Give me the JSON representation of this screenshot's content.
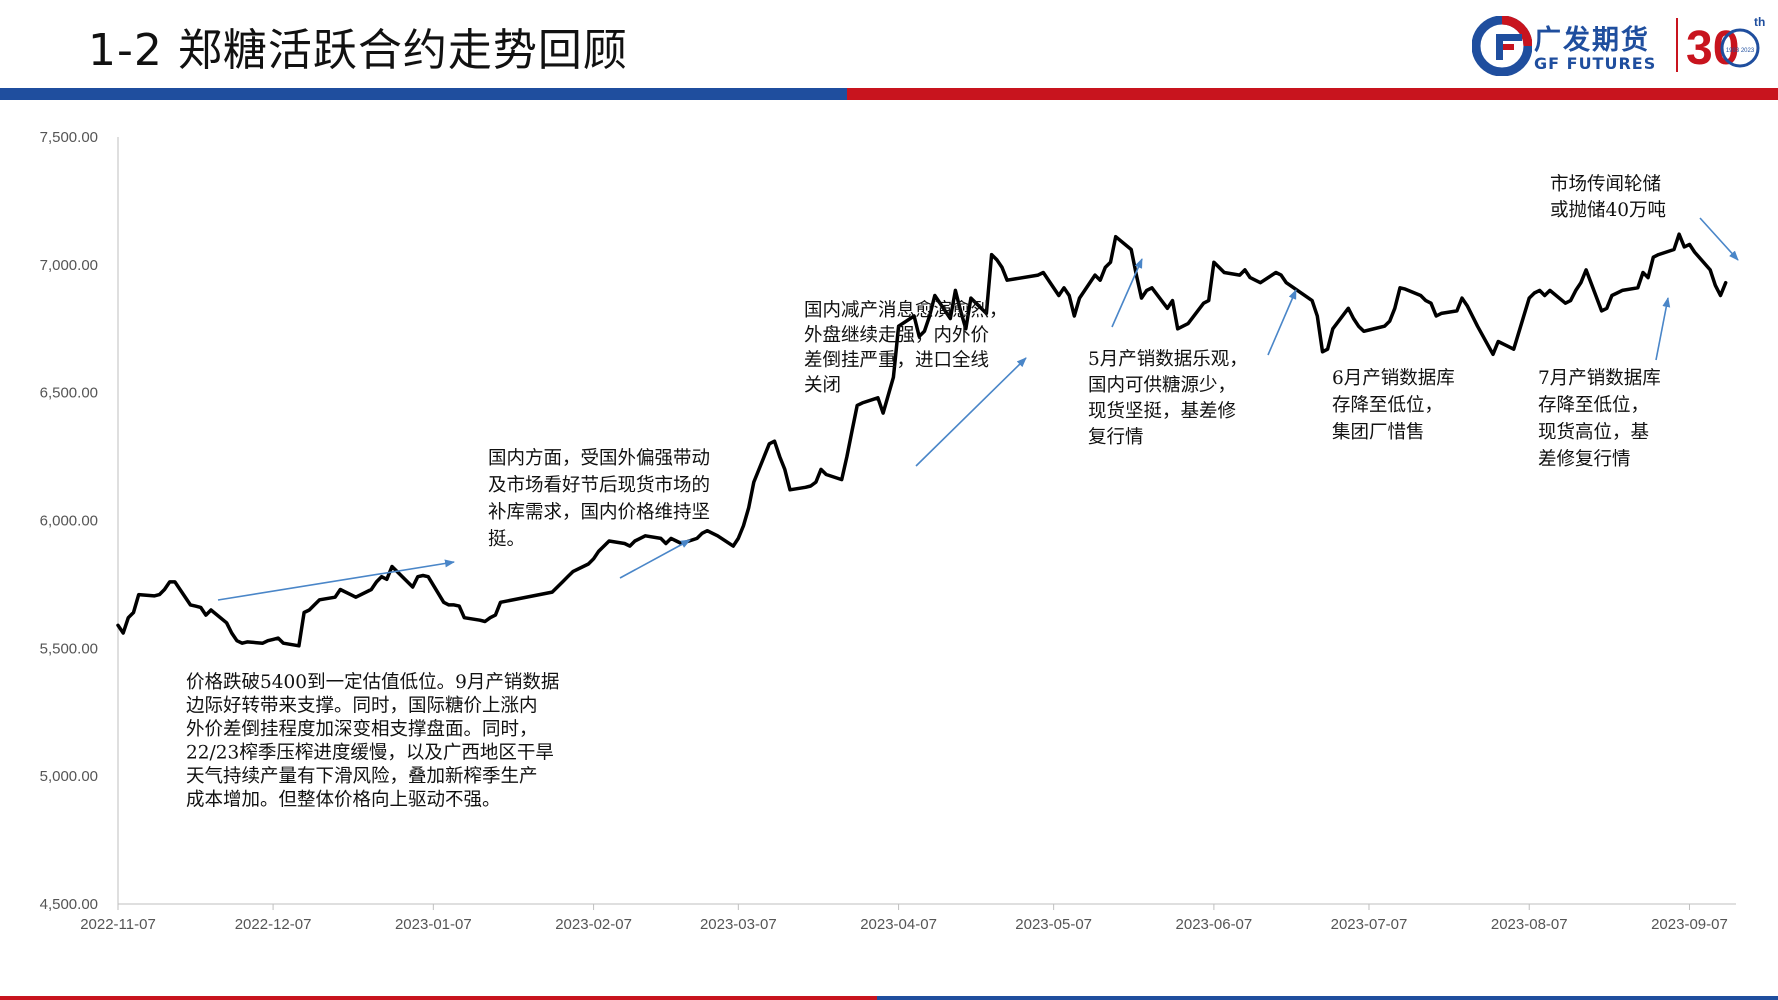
{
  "header": {
    "title": "1-2 郑糖活跃合约走势回顾"
  },
  "logo": {
    "name_cn": "广发期货",
    "name_en": "GF FUTURES",
    "anniversary": "30",
    "anniversary_suffix": "th",
    "years": "1993 2023"
  },
  "colors": {
    "brand_blue": "#1f4e9e",
    "brand_red": "#c8141e",
    "series": "#000000",
    "arrow": "#4a86c8"
  },
  "chart_data": {
    "type": "line",
    "title": "",
    "xlabel": "",
    "ylabel": "",
    "ylim": [
      4500,
      7500
    ],
    "y_ticks": [
      "7,500.00",
      "7,000.00",
      "6,500.00",
      "6,000.00",
      "5,500.00",
      "5,000.00",
      "4,500.00"
    ],
    "x_ticks": [
      "2022-11-07",
      "2022-12-07",
      "2023-01-07",
      "2023-02-07",
      "2023-03-07",
      "2023-04-07",
      "2023-05-07",
      "2023-06-07",
      "2023-07-07",
      "2023-08-07",
      "2023-09-07"
    ],
    "x_range": [
      "2022-11-07",
      "2023-09-16"
    ],
    "grid": false,
    "legend": "none",
    "series": [
      {
        "values": [
          [
            "2022-11-07",
            5590
          ],
          [
            "2022-11-08",
            5560
          ],
          [
            "2022-11-09",
            5620
          ],
          [
            "2022-11-10",
            5640
          ],
          [
            "2022-11-11",
            5710
          ],
          [
            "2022-11-14",
            5705
          ],
          [
            "2022-11-15",
            5710
          ],
          [
            "2022-11-16",
            5730
          ],
          [
            "2022-11-17",
            5760
          ],
          [
            "2022-11-18",
            5760
          ],
          [
            "2022-11-21",
            5670
          ],
          [
            "2022-11-22",
            5665
          ],
          [
            "2022-11-23",
            5660
          ],
          [
            "2022-11-24",
            5630
          ],
          [
            "2022-11-25",
            5650
          ],
          [
            "2022-11-28",
            5600
          ],
          [
            "2022-11-29",
            5560
          ],
          [
            "2022-11-30",
            5530
          ],
          [
            "2022-12-01",
            5520
          ],
          [
            "2022-12-02",
            5525
          ],
          [
            "2022-12-05",
            5520
          ],
          [
            "2022-12-06",
            5530
          ],
          [
            "2022-12-07",
            5535
          ],
          [
            "2022-12-08",
            5540
          ],
          [
            "2022-12-09",
            5520
          ],
          [
            "2022-12-12",
            5510
          ],
          [
            "2022-12-13",
            5640
          ],
          [
            "2022-12-14",
            5650
          ],
          [
            "2022-12-15",
            5670
          ],
          [
            "2022-12-16",
            5690
          ],
          [
            "2022-12-19",
            5700
          ],
          [
            "2022-12-20",
            5730
          ],
          [
            "2022-12-21",
            5720
          ],
          [
            "2022-12-22",
            5710
          ],
          [
            "2022-12-23",
            5700
          ],
          [
            "2022-12-26",
            5730
          ],
          [
            "2022-12-27",
            5760
          ],
          [
            "2022-12-28",
            5780
          ],
          [
            "2022-12-29",
            5770
          ],
          [
            "2022-12-30",
            5820
          ],
          [
            "2023-01-03",
            5740
          ],
          [
            "2023-01-04",
            5780
          ],
          [
            "2023-01-05",
            5785
          ],
          [
            "2023-01-06",
            5780
          ],
          [
            "2023-01-09",
            5680
          ],
          [
            "2023-01-10",
            5670
          ],
          [
            "2023-01-11",
            5670
          ],
          [
            "2023-01-12",
            5665
          ],
          [
            "2023-01-13",
            5620
          ],
          [
            "2023-01-16",
            5610
          ],
          [
            "2023-01-17",
            5605
          ],
          [
            "2023-01-18",
            5620
          ],
          [
            "2023-01-19",
            5630
          ],
          [
            "2023-01-20",
            5680
          ],
          [
            "2023-01-30",
            5720
          ],
          [
            "2023-01-31",
            5740
          ],
          [
            "2023-02-01",
            5760
          ],
          [
            "2023-02-02",
            5780
          ],
          [
            "2023-02-03",
            5800
          ],
          [
            "2023-02-06",
            5830
          ],
          [
            "2023-02-07",
            5850
          ],
          [
            "2023-02-08",
            5880
          ],
          [
            "2023-02-09",
            5900
          ],
          [
            "2023-02-10",
            5920
          ],
          [
            "2023-02-13",
            5910
          ],
          [
            "2023-02-14",
            5900
          ],
          [
            "2023-02-15",
            5920
          ],
          [
            "2023-02-16",
            5930
          ],
          [
            "2023-02-17",
            5940
          ],
          [
            "2023-02-20",
            5930
          ],
          [
            "2023-02-21",
            5910
          ],
          [
            "2023-02-22",
            5930
          ],
          [
            "2023-02-23",
            5920
          ],
          [
            "2023-02-24",
            5910
          ],
          [
            "2023-02-27",
            5930
          ],
          [
            "2023-02-28",
            5950
          ],
          [
            "2023-03-01",
            5960
          ],
          [
            "2023-03-02",
            5950
          ],
          [
            "2023-03-03",
            5940
          ],
          [
            "2023-03-06",
            5900
          ],
          [
            "2023-03-07",
            5930
          ],
          [
            "2023-03-08",
            5980
          ],
          [
            "2023-03-09",
            6050
          ],
          [
            "2023-03-10",
            6150
          ],
          [
            "2023-03-13",
            6300
          ],
          [
            "2023-03-14",
            6310
          ],
          [
            "2023-03-15",
            6250
          ],
          [
            "2023-03-16",
            6200
          ],
          [
            "2023-03-17",
            6120
          ],
          [
            "2023-03-20",
            6130
          ],
          [
            "2023-03-21",
            6135
          ],
          [
            "2023-03-22",
            6150
          ],
          [
            "2023-03-23",
            6200
          ],
          [
            "2023-03-24",
            6180
          ],
          [
            "2023-03-27",
            6160
          ],
          [
            "2023-03-28",
            6250
          ],
          [
            "2023-03-29",
            6350
          ],
          [
            "2023-03-30",
            6450
          ],
          [
            "2023-03-31",
            6460
          ],
          [
            "2023-04-03",
            6480
          ],
          [
            "2023-04-04",
            6420
          ],
          [
            "2023-04-06",
            6560
          ],
          [
            "2023-04-07",
            6760
          ],
          [
            "2023-04-10",
            6800
          ],
          [
            "2023-04-11",
            6720
          ],
          [
            "2023-04-12",
            6740
          ],
          [
            "2023-04-13",
            6800
          ],
          [
            "2023-04-14",
            6880
          ],
          [
            "2023-04-17",
            6790
          ],
          [
            "2023-04-18",
            6900
          ],
          [
            "2023-04-19",
            6820
          ],
          [
            "2023-04-20",
            6750
          ],
          [
            "2023-04-21",
            6870
          ],
          [
            "2023-04-24",
            6810
          ],
          [
            "2023-04-25",
            7040
          ],
          [
            "2023-04-26",
            7020
          ],
          [
            "2023-04-27",
            6990
          ],
          [
            "2023-04-28",
            6940
          ],
          [
            "2023-05-04",
            6960
          ],
          [
            "2023-05-05",
            6970
          ],
          [
            "2023-05-08",
            6880
          ],
          [
            "2023-05-09",
            6910
          ],
          [
            "2023-05-10",
            6880
          ],
          [
            "2023-05-11",
            6800
          ],
          [
            "2023-05-12",
            6870
          ],
          [
            "2023-05-15",
            6960
          ],
          [
            "2023-05-16",
            6940
          ],
          [
            "2023-05-17",
            6990
          ],
          [
            "2023-05-18",
            7010
          ],
          [
            "2023-05-19",
            7110
          ],
          [
            "2023-05-22",
            7060
          ],
          [
            "2023-05-23",
            6960
          ],
          [
            "2023-05-24",
            6870
          ],
          [
            "2023-05-25",
            6900
          ],
          [
            "2023-05-26",
            6910
          ],
          [
            "2023-05-29",
            6830
          ],
          [
            "2023-05-30",
            6860
          ],
          [
            "2023-05-31",
            6750
          ],
          [
            "2023-06-01",
            6760
          ],
          [
            "2023-06-02",
            6770
          ],
          [
            "2023-06-05",
            6850
          ],
          [
            "2023-06-06",
            6860
          ],
          [
            "2023-06-07",
            7010
          ],
          [
            "2023-06-08",
            6990
          ],
          [
            "2023-06-09",
            6970
          ],
          [
            "2023-06-12",
            6960
          ],
          [
            "2023-06-13",
            6980
          ],
          [
            "2023-06-14",
            6950
          ],
          [
            "2023-06-15",
            6940
          ],
          [
            "2023-06-16",
            6930
          ],
          [
            "2023-06-19",
            6970
          ],
          [
            "2023-06-20",
            6960
          ],
          [
            "2023-06-21",
            6930
          ],
          [
            "2023-06-26",
            6860
          ],
          [
            "2023-06-27",
            6800
          ],
          [
            "2023-06-28",
            6660
          ],
          [
            "2023-06-29",
            6670
          ],
          [
            "2023-06-30",
            6750
          ],
          [
            "2023-07-03",
            6830
          ],
          [
            "2023-07-04",
            6790
          ],
          [
            "2023-07-05",
            6760
          ],
          [
            "2023-07-06",
            6740
          ],
          [
            "2023-07-07",
            6745
          ],
          [
            "2023-07-10",
            6760
          ],
          [
            "2023-07-11",
            6780
          ],
          [
            "2023-07-12",
            6830
          ],
          [
            "2023-07-13",
            6910
          ],
          [
            "2023-07-14",
            6905
          ],
          [
            "2023-07-17",
            6880
          ],
          [
            "2023-07-18",
            6860
          ],
          [
            "2023-07-19",
            6850
          ],
          [
            "2023-07-20",
            6800
          ],
          [
            "2023-07-21",
            6810
          ],
          [
            "2023-07-24",
            6820
          ],
          [
            "2023-07-25",
            6870
          ],
          [
            "2023-07-26",
            6840
          ],
          [
            "2023-07-27",
            6800
          ],
          [
            "2023-07-28",
            6760
          ],
          [
            "2023-07-31",
            6650
          ],
          [
            "2023-08-01",
            6700
          ],
          [
            "2023-08-02",
            6690
          ],
          [
            "2023-08-03",
            6680
          ],
          [
            "2023-08-04",
            6670
          ],
          [
            "2023-08-07",
            6870
          ],
          [
            "2023-08-08",
            6890
          ],
          [
            "2023-08-09",
            6900
          ],
          [
            "2023-08-10",
            6880
          ],
          [
            "2023-08-11",
            6900
          ],
          [
            "2023-08-14",
            6850
          ],
          [
            "2023-08-15",
            6860
          ],
          [
            "2023-08-16",
            6900
          ],
          [
            "2023-08-17",
            6930
          ],
          [
            "2023-08-18",
            6980
          ],
          [
            "2023-08-21",
            6820
          ],
          [
            "2023-08-22",
            6830
          ],
          [
            "2023-08-23",
            6880
          ],
          [
            "2023-08-24",
            6890
          ],
          [
            "2023-08-25",
            6900
          ],
          [
            "2023-08-28",
            6910
          ],
          [
            "2023-08-29",
            6970
          ],
          [
            "2023-08-30",
            6950
          ],
          [
            "2023-08-31",
            7030
          ],
          [
            "2023-09-01",
            7040
          ],
          [
            "2023-09-04",
            7060
          ],
          [
            "2023-09-05",
            7120
          ],
          [
            "2023-09-06",
            7070
          ],
          [
            "2023-09-07",
            7080
          ],
          [
            "2023-09-08",
            7050
          ],
          [
            "2023-09-11",
            6980
          ],
          [
            "2023-09-12",
            6920
          ],
          [
            "2023-09-13",
            6880
          ],
          [
            "2023-09-14",
            6930
          ]
        ]
      }
    ],
    "annotations": [
      {
        "lines": [
          "价格跌破5400到一定估值低位。9月产销数据",
          "边际好转带来支撑。同时，国际糖价上涨内",
          "外价差倒挂程度加深变相支撑盘面。同时，",
          "22/23榨季压榨进度缓慢，以及广西地区干旱",
          "天气持续产量有下滑风险，叠加新榨季生产",
          "成本增加。但整体价格向上驱动不强。"
        ]
      },
      {
        "lines": [
          "国内方面，受国外偏强带动",
          "及市场看好节后现货市场的",
          "补库需求，国内价格维持坚",
          "挺。"
        ]
      },
      {
        "lines": [
          "国内减产消息愈演愈烈，",
          "外盘继续走强，内外价",
          "差倒挂严重，进口全线",
          "关闭"
        ]
      },
      {
        "lines": [
          "5月产销数据乐观，",
          "国内可供糖源少，",
          "现货坚挺，基差修",
          "复行情"
        ]
      },
      {
        "lines": [
          "6月产销数据库",
          "存降至低位，",
          "集团厂惜售"
        ]
      },
      {
        "lines": [
          "7月产销数据库",
          "存降至低位，",
          "现货高位，基",
          "差修复行情"
        ]
      },
      {
        "lines": [
          "市场传闻轮储",
          "或抛储40万吨"
        ]
      }
    ]
  }
}
